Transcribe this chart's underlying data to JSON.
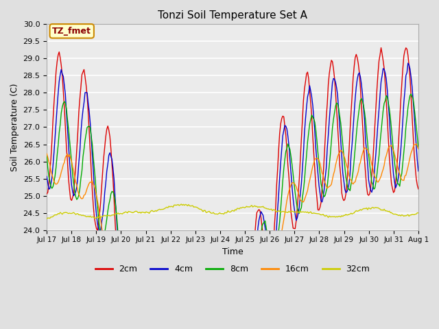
{
  "title": "Tonzi Soil Temperature Set A",
  "xlabel": "Time",
  "ylabel": "Soil Temperature (C)",
  "ylim": [
    24.0,
    30.0
  ],
  "yticks": [
    24.0,
    24.5,
    25.0,
    25.5,
    26.0,
    26.5,
    27.0,
    27.5,
    28.0,
    28.5,
    29.0,
    29.5,
    30.0
  ],
  "line_colors": {
    "2cm": "#dd0000",
    "4cm": "#0000cc",
    "8cm": "#00aa00",
    "16cm": "#ff8800",
    "32cm": "#cccc00"
  },
  "legend_label": "TZ_fmet",
  "legend_box_color": "#ffffcc",
  "legend_box_border": "#cc8800",
  "bg_color": "#e0e0e0",
  "plot_bg_color": "#ebebeb",
  "grid_color": "#ffffff",
  "xtick_positions": [
    0,
    1,
    2,
    3,
    4,
    5,
    6,
    7,
    8,
    9,
    10,
    11,
    12,
    13,
    14,
    15
  ],
  "xtick_labels": [
    "Jul 17",
    "Jul 18",
    "Jul 19",
    "Jul 20",
    "Jul 21",
    "Jul 22",
    "Jul 23",
    "Jul 24",
    "Jul 25",
    "Jul 26",
    "Jul 27",
    "Jul 28",
    "Jul 29",
    "Jul 30",
    "Jul 31",
    "Aug 1"
  ]
}
